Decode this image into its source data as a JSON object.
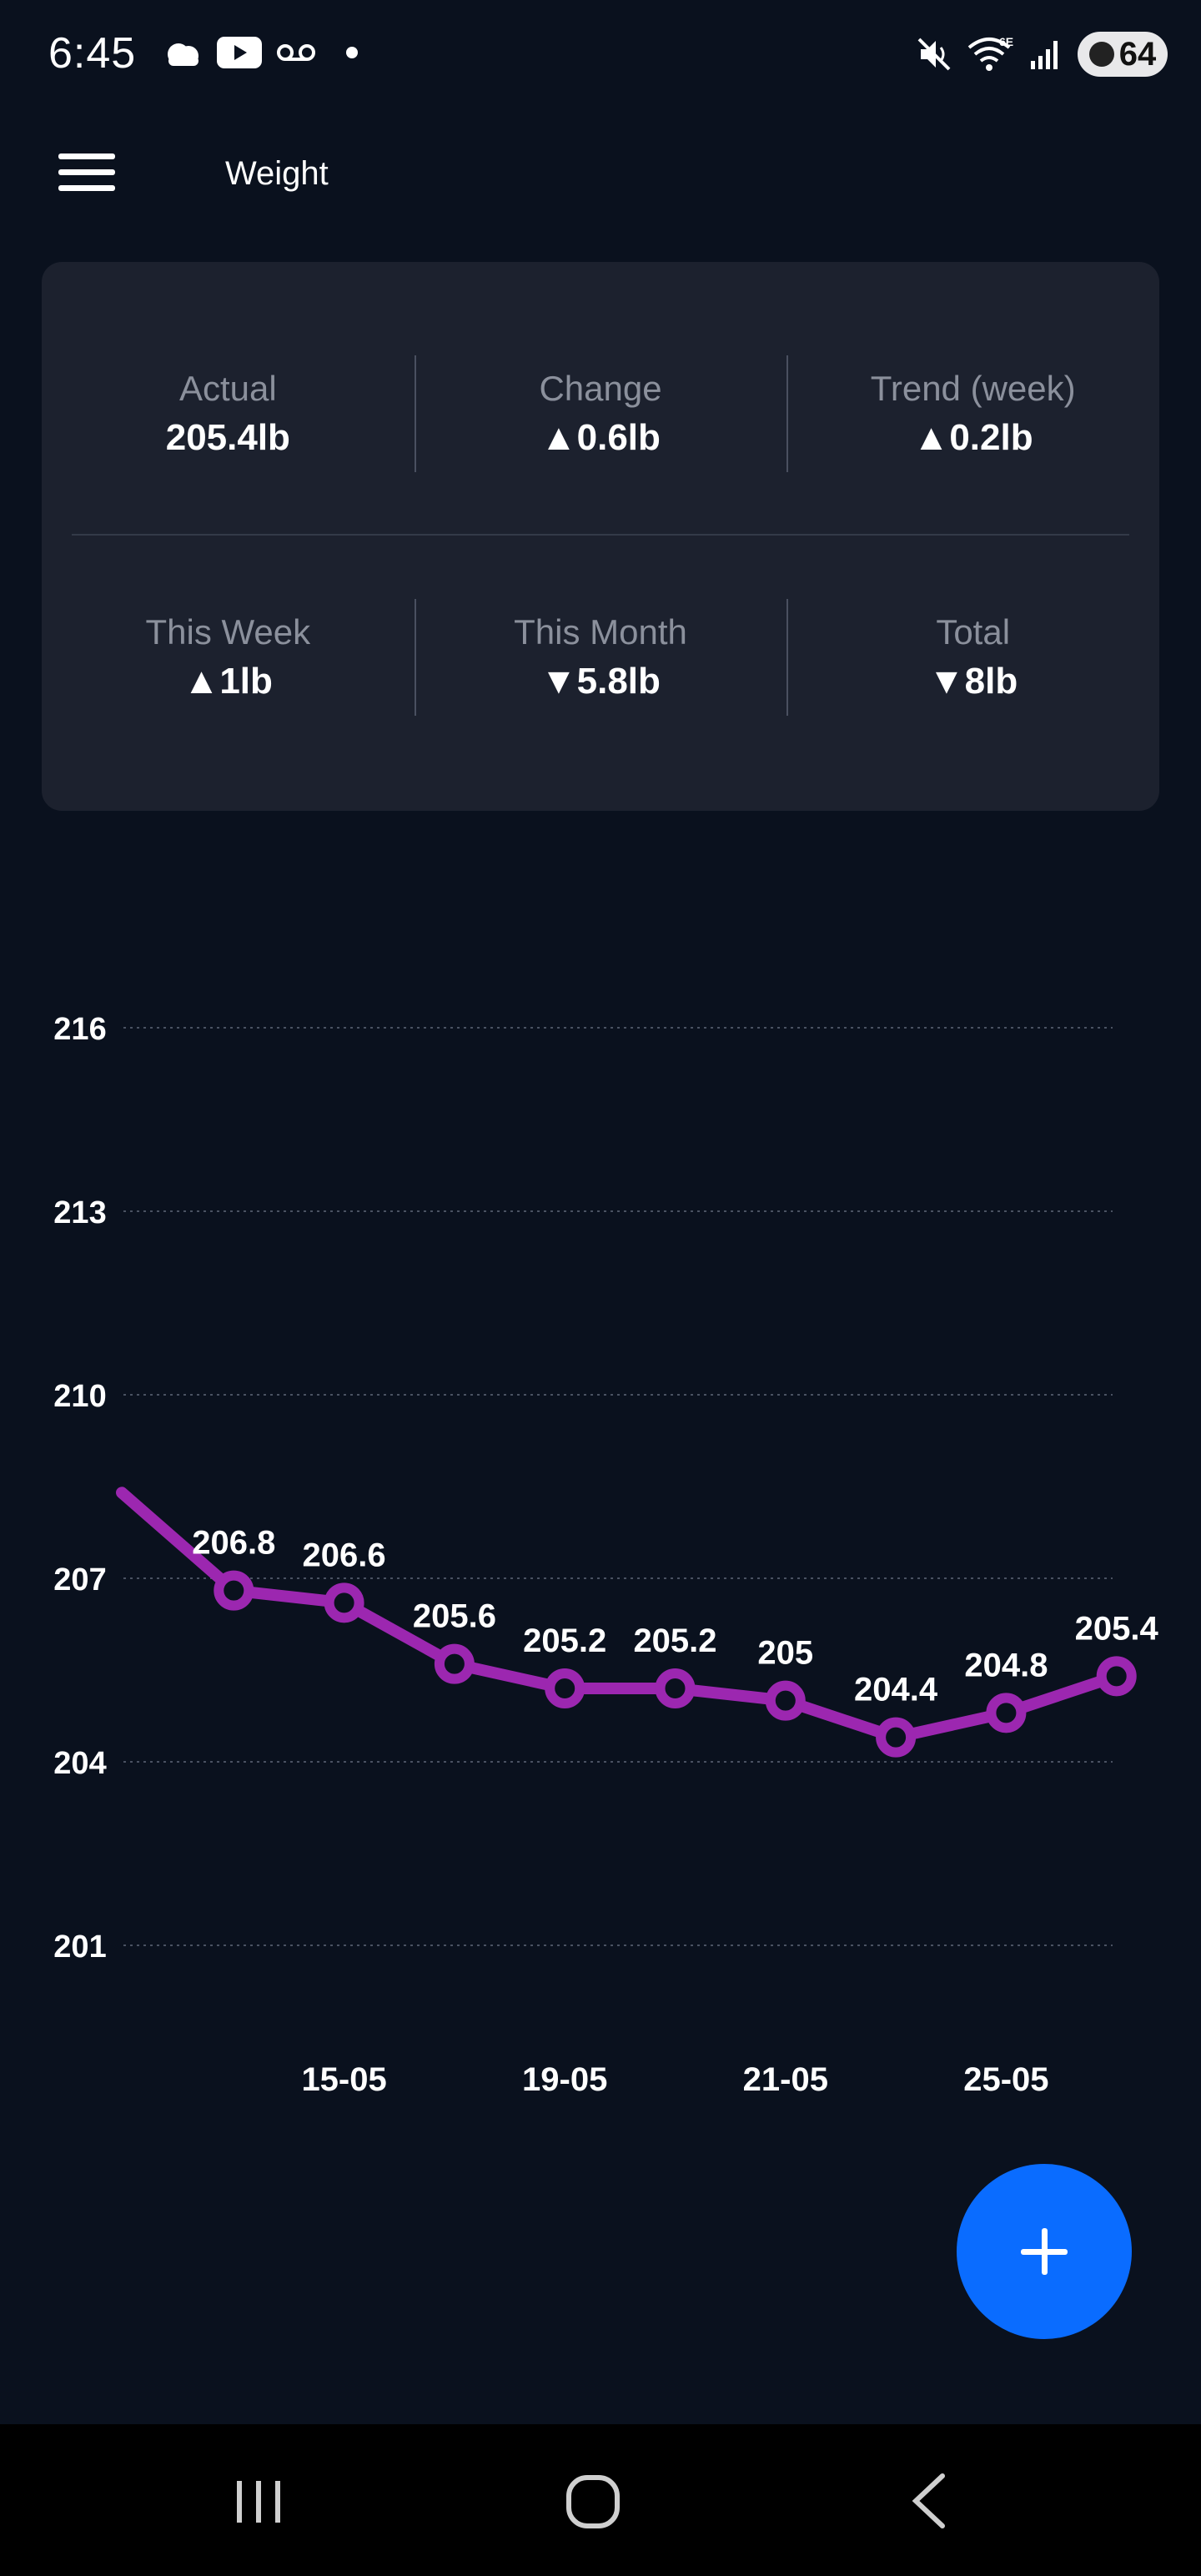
{
  "status_bar": {
    "time": "6:45",
    "battery": "64",
    "network_label": "6E",
    "icons_left": [
      "weather-icon",
      "youtube-icon",
      "voicemail-icon",
      "notification-dot-icon"
    ],
    "icons_right": [
      "mute-icon",
      "wifi-icon",
      "signal-icon",
      "battery-icon"
    ]
  },
  "app_bar": {
    "title": "Weight",
    "menu_icon": "hamburger-menu-icon"
  },
  "summary": {
    "row1": [
      {
        "label": "Actual",
        "value": "205.4lb"
      },
      {
        "label": "Change",
        "value": "▲0.6lb"
      },
      {
        "label": "Trend (week)",
        "value": "▲0.2lb"
      }
    ],
    "row2": [
      {
        "label": "This Week",
        "value": "▲1lb"
      },
      {
        "label": "This Month",
        "value": "▼5.8lb"
      },
      {
        "label": "Total",
        "value": "▼8lb"
      }
    ]
  },
  "chart_data": {
    "type": "line",
    "title": "",
    "xlabel": "",
    "ylabel": "",
    "ylim": [
      201,
      216
    ],
    "yticks": [
      216,
      213,
      210,
      207,
      204,
      201
    ],
    "x_index": [
      0,
      1,
      2,
      3,
      4,
      5,
      6,
      7,
      8,
      9
    ],
    "x_tick_labels": [
      {
        "index": 2,
        "label": "15-05"
      },
      {
        "index": 4,
        "label": "19-05"
      },
      {
        "index": 6,
        "label": "21-05"
      },
      {
        "index": 8,
        "label": "25-05"
      }
    ],
    "series": [
      {
        "color": "#9c27b0",
        "values": [
          208.4,
          206.8,
          206.6,
          205.6,
          205.2,
          205.2,
          205,
          204.4,
          204.8,
          205.4
        ],
        "data_labels": [
          "",
          "206.8",
          "206.6",
          "205.6",
          "205.2",
          "205.2",
          "205",
          "204.4",
          "204.8",
          "205.4"
        ]
      }
    ],
    "grid": true,
    "legend": "none"
  },
  "fab": {
    "icon": "plus-icon",
    "color": "#0a6cff"
  },
  "nav_bar": {
    "buttons": [
      "recents-icon",
      "home-icon",
      "back-icon"
    ]
  },
  "colors": {
    "background": "#0a111e",
    "card": "#1c212e",
    "accent": "#9c27b0",
    "fab": "#0a6cff"
  }
}
